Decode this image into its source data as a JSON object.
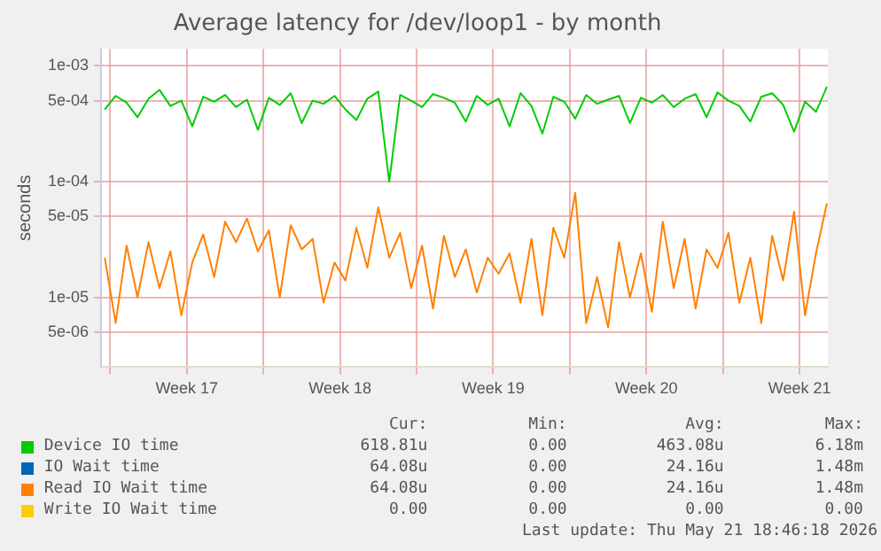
{
  "chart_data": {
    "type": "line",
    "title": "Average latency for /dev/loop1 - by month",
    "ylabel": "seconds",
    "log": "y",
    "grid": true,
    "legend": "bottom",
    "marker": "none",
    "line_style": "solid",
    "x": [
      "2026-04-18T18:00",
      "2026-04-19T06:00",
      "2026-04-19T18:00",
      "2026-04-20T06:00",
      "2026-04-20T18:00",
      "2026-04-21T06:00",
      "2026-04-21T18:00",
      "2026-04-22T06:00",
      "2026-04-22T18:00",
      "2026-04-23T06:00",
      "2026-04-23T18:00",
      "2026-04-24T06:00",
      "2026-04-24T18:00",
      "2026-04-25T06:00",
      "2026-04-25T18:00",
      "2026-04-26T06:00",
      "2026-04-26T18:00",
      "2026-04-27T06:00",
      "2026-04-27T18:00",
      "2026-04-28T06:00",
      "2026-04-28T18:00",
      "2026-04-29T06:00",
      "2026-04-29T18:00",
      "2026-04-30T06:00",
      "2026-04-30T18:00",
      "2026-05-01T06:00",
      "2026-05-01T18:00",
      "2026-05-02T06:00",
      "2026-05-02T18:00",
      "2026-05-03T06:00",
      "2026-05-03T18:00",
      "2026-05-04T06:00",
      "2026-05-04T18:00",
      "2026-05-05T06:00",
      "2026-05-05T18:00",
      "2026-05-06T06:00",
      "2026-05-06T18:00",
      "2026-05-07T06:00",
      "2026-05-07T18:00",
      "2026-05-08T06:00",
      "2026-05-08T18:00",
      "2026-05-09T06:00",
      "2026-05-09T18:00",
      "2026-05-10T06:00",
      "2026-05-10T18:00",
      "2026-05-11T06:00",
      "2026-05-11T18:00",
      "2026-05-12T06:00",
      "2026-05-12T18:00",
      "2026-05-13T06:00",
      "2026-05-13T18:00",
      "2026-05-14T06:00",
      "2026-05-14T18:00",
      "2026-05-15T06:00",
      "2026-05-15T18:00",
      "2026-05-16T06:00",
      "2026-05-16T18:00",
      "2026-05-17T06:00",
      "2026-05-17T18:00",
      "2026-05-18T06:00",
      "2026-05-18T18:00",
      "2026-05-19T06:00",
      "2026-05-19T18:00",
      "2026-05-20T06:00",
      "2026-05-20T18:00",
      "2026-05-21T06:00",
      "2026-05-21T18:00"
    ],
    "xlim": [
      "2026-04-18T14:00",
      "2026-05-21T19:00"
    ],
    "xticks": [
      {
        "value": "2026-04-19T00:00",
        "label": null
      },
      {
        "value": "2026-04-22T12:00",
        "label": "Week 17"
      },
      {
        "value": "2026-04-26T00:00",
        "label": null
      },
      {
        "value": "2026-04-29T12:00",
        "label": "Week 18"
      },
      {
        "value": "2026-05-03T00:00",
        "label": null
      },
      {
        "value": "2026-05-06T12:00",
        "label": "Week 19"
      },
      {
        "value": "2026-05-10T00:00",
        "label": null
      },
      {
        "value": "2026-05-13T12:00",
        "label": "Week 20"
      },
      {
        "value": "2026-05-17T00:00",
        "label": null
      },
      {
        "value": "2026-05-20T12:00",
        "label": "Week 21"
      }
    ],
    "ylim": [
      2.5e-06,
      0.0014
    ],
    "yticks": [
      {
        "value": 5e-06,
        "label": "5e-06"
      },
      {
        "value": 1e-05,
        "label": "1e-05"
      },
      {
        "value": 5e-05,
        "label": "5e-05"
      },
      {
        "value": 0.0001,
        "label": "1e-04"
      },
      {
        "value": 0.0005,
        "label": "5e-04"
      },
      {
        "value": 0.001,
        "label": "1e-03"
      }
    ],
    "series": [
      {
        "name": "Device IO time",
        "color": "#00cc00",
        "values": [
          0.00042,
          0.00055,
          0.00048,
          0.00036,
          0.00052,
          0.00062,
          0.00045,
          0.0005,
          0.0003,
          0.00054,
          0.00049,
          0.00056,
          0.00044,
          0.00051,
          0.00028,
          0.00053,
          0.00046,
          0.00058,
          0.00032,
          0.0005,
          0.00047,
          0.00055,
          0.00042,
          0.00034,
          0.00052,
          0.0006,
          0.0001,
          0.00056,
          0.0005,
          0.00044,
          0.00057,
          0.00053,
          0.00048,
          0.00033,
          0.00055,
          0.00046,
          0.00052,
          0.0003,
          0.00058,
          0.00045,
          0.00026,
          0.00054,
          0.00049,
          0.00035,
          0.00056,
          0.00047,
          0.00051,
          0.00055,
          0.00032,
          0.00053,
          0.00048,
          0.00056,
          0.00044,
          0.00052,
          0.00057,
          0.00036,
          0.00059,
          0.0005,
          0.00045,
          0.00033,
          0.00054,
          0.00058,
          0.00046,
          0.00027,
          0.00049,
          0.0004,
          0.00066
        ]
      },
      {
        "name": "IO Wait time",
        "color": "#0066b3",
        "values": [
          null,
          null,
          null,
          null,
          null,
          null,
          null,
          null,
          null,
          null,
          null,
          null,
          null,
          null,
          null,
          null,
          null,
          null,
          null,
          null,
          null,
          null,
          null,
          null,
          null,
          null,
          null,
          null,
          null,
          null,
          null,
          null,
          null,
          null,
          null,
          null,
          null,
          null,
          null,
          null,
          null,
          null,
          null,
          null,
          null,
          null,
          null,
          null,
          null,
          null,
          null,
          null,
          null,
          null,
          null,
          null,
          null,
          null,
          null,
          null,
          null,
          null,
          null,
          null,
          null,
          null,
          null
        ]
      },
      {
        "name": "Read IO Wait time",
        "color": "#ff8000",
        "values": [
          2.2e-05,
          6e-06,
          2.8e-05,
          1e-05,
          3e-05,
          1.2e-05,
          2.5e-05,
          7e-06,
          2e-05,
          3.5e-05,
          1.5e-05,
          4.5e-05,
          3e-05,
          4.8e-05,
          2.5e-05,
          3.8e-05,
          1e-05,
          4.2e-05,
          2.6e-05,
          3.2e-05,
          9e-06,
          2e-05,
          1.4e-05,
          4e-05,
          1.8e-05,
          6e-05,
          2.2e-05,
          3.6e-05,
          1.2e-05,
          2.8e-05,
          8e-06,
          3.4e-05,
          1.5e-05,
          2.6e-05,
          1.1e-05,
          2.2e-05,
          1.6e-05,
          2.4e-05,
          9e-06,
          3.2e-05,
          7e-06,
          4e-05,
          2.2e-05,
          8e-05,
          6e-06,
          1.5e-05,
          5.5e-06,
          3e-05,
          1e-05,
          2.4e-05,
          7.5e-06,
          4.5e-05,
          1.2e-05,
          3.2e-05,
          8e-06,
          2.6e-05,
          1.8e-05,
          3.6e-05,
          9e-06,
          2.2e-05,
          6e-06,
          3.4e-05,
          1.4e-05,
          5.5e-05,
          7e-06,
          2.4e-05,
          6.5e-05
        ]
      },
      {
        "name": "Write IO Wait time",
        "color": "#ffcc00",
        "values": [
          null,
          null,
          null,
          null,
          null,
          null,
          null,
          null,
          null,
          null,
          null,
          null,
          null,
          null,
          null,
          null,
          null,
          null,
          null,
          null,
          null,
          null,
          null,
          null,
          null,
          null,
          null,
          null,
          null,
          null,
          null,
          null,
          null,
          null,
          null,
          null,
          null,
          null,
          null,
          null,
          null,
          null,
          null,
          null,
          null,
          null,
          null,
          null,
          null,
          null,
          null,
          null,
          null,
          null,
          null,
          null,
          null,
          null,
          null,
          null,
          null,
          null,
          null,
          null,
          null,
          null,
          null
        ]
      }
    ],
    "annotations": [
      "Cur:",
      "Min:",
      "Avg:",
      "Max:",
      "618.81u",
      "0.00",
      "463.08u",
      "6.18m",
      "64.08u",
      "0.00",
      "24.16u",
      "1.48m",
      "64.08u",
      "0.00",
      "24.16u",
      "1.48m",
      "0.00",
      "0.00",
      "0.00",
      "0.00",
      "Last update: Thu May 21 18:46:18 2026"
    ]
  }
}
